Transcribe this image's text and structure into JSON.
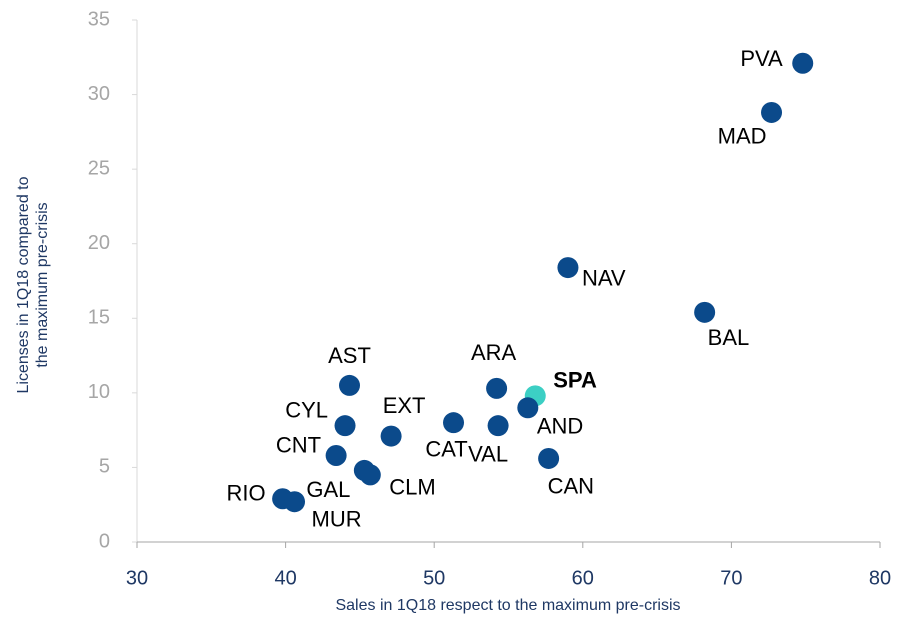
{
  "chart_data": {
    "type": "scatter",
    "x_label": "Sales in 1Q18 respect to the maximum pre-crisis",
    "y_label": [
      "Licenses in 1Q18 compared to",
      "the maximum pre-crisis"
    ],
    "xlim": [
      30,
      80
    ],
    "xticks": [
      30,
      40,
      50,
      60,
      70,
      80
    ],
    "ylim": [
      0,
      35
    ],
    "yticks": [
      0,
      5,
      10,
      15,
      20,
      25,
      30,
      35
    ],
    "grid": false,
    "series": [
      {
        "labels": [
          "PVA",
          "MAD",
          "NAV",
          "BAL",
          "AST",
          "ARA",
          "SPA",
          "AND",
          "CYL",
          "EXT",
          "CAT",
          "VAL",
          "CAN",
          "CNT",
          "GAL",
          "CLM",
          "RIO",
          "MUR"
        ],
        "x": [
          74.8,
          72.7,
          59.0,
          68.2,
          44.3,
          54.2,
          56.8,
          56.3,
          44.0,
          47.1,
          51.3,
          54.3,
          57.7,
          43.4,
          45.3,
          45.7,
          39.8,
          40.6
        ],
        "values": [
          32.1,
          28.8,
          18.4,
          15.4,
          10.5,
          10.3,
          9.8,
          9.0,
          7.8,
          7.1,
          8.0,
          7.8,
          5.6,
          5.8,
          4.8,
          4.5,
          2.9,
          2.7
        ],
        "colors": [
          "#0b4a8b",
          "#0b4a8b",
          "#0b4a8b",
          "#0b4a8b",
          "#0b4a8b",
          "#0b4a8b",
          "#3ccfc4",
          "#0b4a8b",
          "#0b4a8b",
          "#0b4a8b",
          "#0b4a8b",
          "#0b4a8b",
          "#0b4a8b",
          "#0b4a8b",
          "#0b4a8b",
          "#0b4a8b",
          "#0b4a8b",
          "#0b4a8b"
        ]
      }
    ]
  }
}
